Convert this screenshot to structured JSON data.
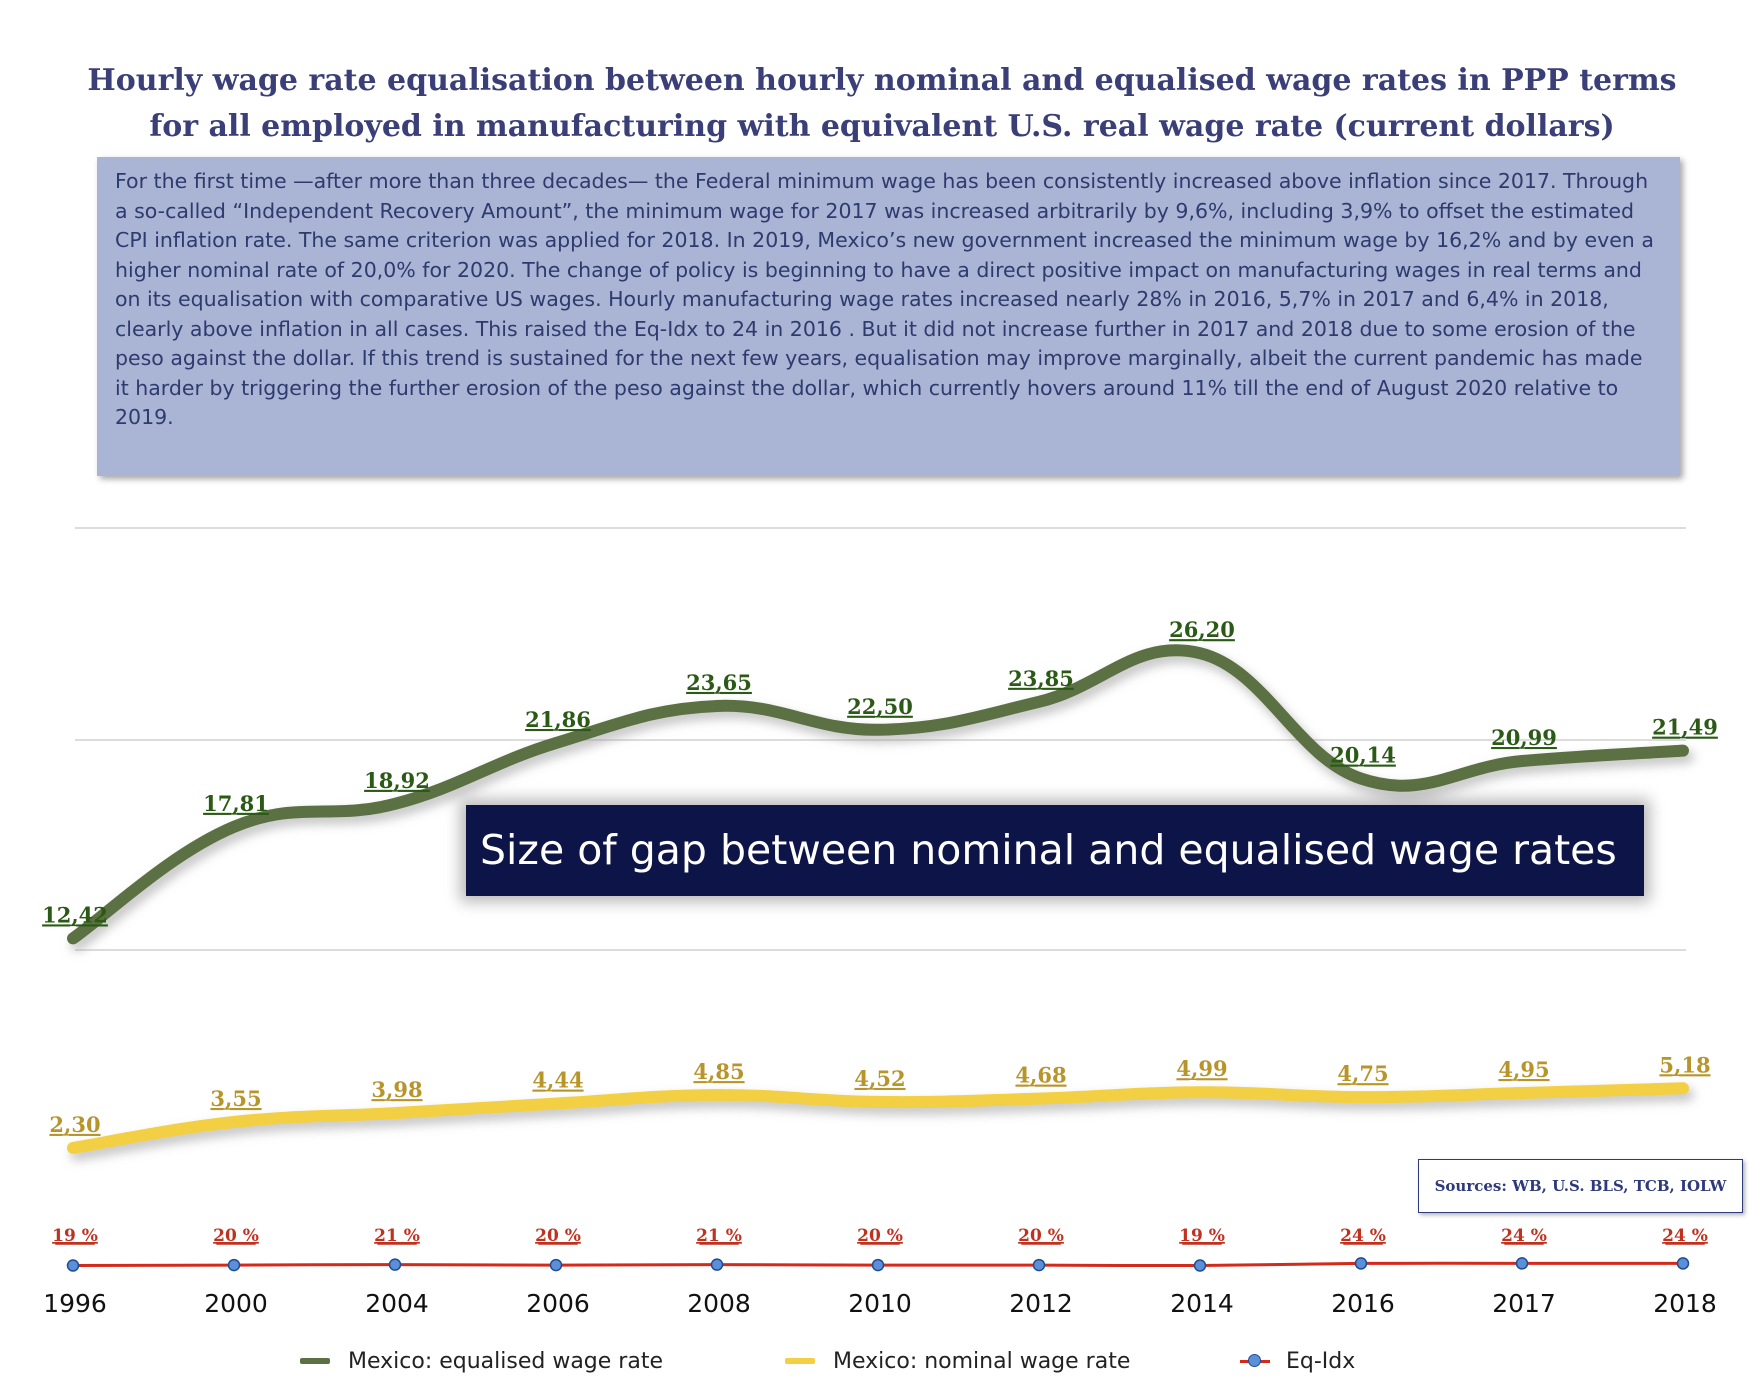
{
  "title": {
    "line1": "Hourly wage rate equalisation between hourly nominal and equalised wage rates in PPP terms",
    "line2": "for all employed in manufacturing with equivalent U.S. real wage rate (current dollars)"
  },
  "note": "For the first time —after more than three decades— the Federal minimum wage has been consistently increased above inflation since 2017. Through a so-called “Independent Recovery Amount”, the minimum wage for 2017 was increased arbitrarily by 9,6%, including 3,9% to offset the estimated CPI inflation rate. The same criterion was applied for 2018. In 2019, Mexico’s new government increased the minimum wage by 16,2% and by even a higher nominal rate  of 20,0% for 2020.  The change of policy is beginning to have a direct positive impact on manufacturing wages in real terms and on its equalisation with comparative US wages. Hourly manufacturing wage rates increased nearly 28% in 2016, 5,7% in 2017 and 6,4% in 2018, clearly above inflation in all cases. This raised the Eq-Idx to 24 in 2016 . But it did not increase further in 2017 and 2018 due to some erosion of the peso against the dollar. If this trend is sustained for the next few years, equalisation may improve marginally, albeit the current pandemic has made it harder by triggering the further erosion of the peso against the dollar, which currently hovers around 11% till the end of August 2020 relative to 2019.",
  "gap_banner": "Size of gap between nominal and equalised wage rates",
  "sources": "Sources: WB, U.S. BLS, TCB, IOLW",
  "colors": {
    "equalised": "#5b7143",
    "equalised_label": "#2b5a16",
    "nominal": "#f2cf43",
    "nominal_label": "#b8952a",
    "eqidx_line": "#d42a1c",
    "eqidx_label": "#c0311f",
    "eqidx_marker": "#5b8fd8",
    "grid": "#c8c8c8"
  },
  "chart_data": {
    "type": "line",
    "x": [
      "1996",
      "2000",
      "2004",
      "2006",
      "2008",
      "2010",
      "2012",
      "2014",
      "2016",
      "2017",
      "2018"
    ],
    "grid": true,
    "legend_position": "bottom",
    "series": [
      {
        "name": "Mexico: equalised wage rate",
        "values": [
          12.42,
          17.81,
          18.92,
          21.86,
          23.65,
          22.5,
          23.85,
          26.2,
          20.14,
          20.99,
          21.49
        ],
        "labels": [
          "12,42",
          "17,81",
          "18,92",
          "21,86",
          "23,65",
          "22,50",
          "23,85",
          "26,20",
          "20,14",
          "20,99",
          "21,49"
        ]
      },
      {
        "name": "Mexico: nominal wage rate",
        "values": [
          2.3,
          3.55,
          3.98,
          4.44,
          4.85,
          4.52,
          4.68,
          4.99,
          4.75,
          4.95,
          5.18
        ],
        "labels": [
          "2,30",
          "3,55",
          "3,98",
          "4,44",
          "4,85",
          "4,52",
          "4,68",
          "4,99",
          "4,75",
          "4,95",
          "5,18"
        ]
      },
      {
        "name": "Eq-Idx",
        "values": [
          19,
          20,
          21,
          20,
          21,
          20,
          20,
          19,
          24,
          24,
          24
        ],
        "labels": [
          "19 %",
          "20 %",
          "21 %",
          "20 %",
          "21 %",
          "20 %",
          "20 %",
          "19 %",
          "24 %",
          "24 %",
          "24 %"
        ]
      }
    ]
  }
}
